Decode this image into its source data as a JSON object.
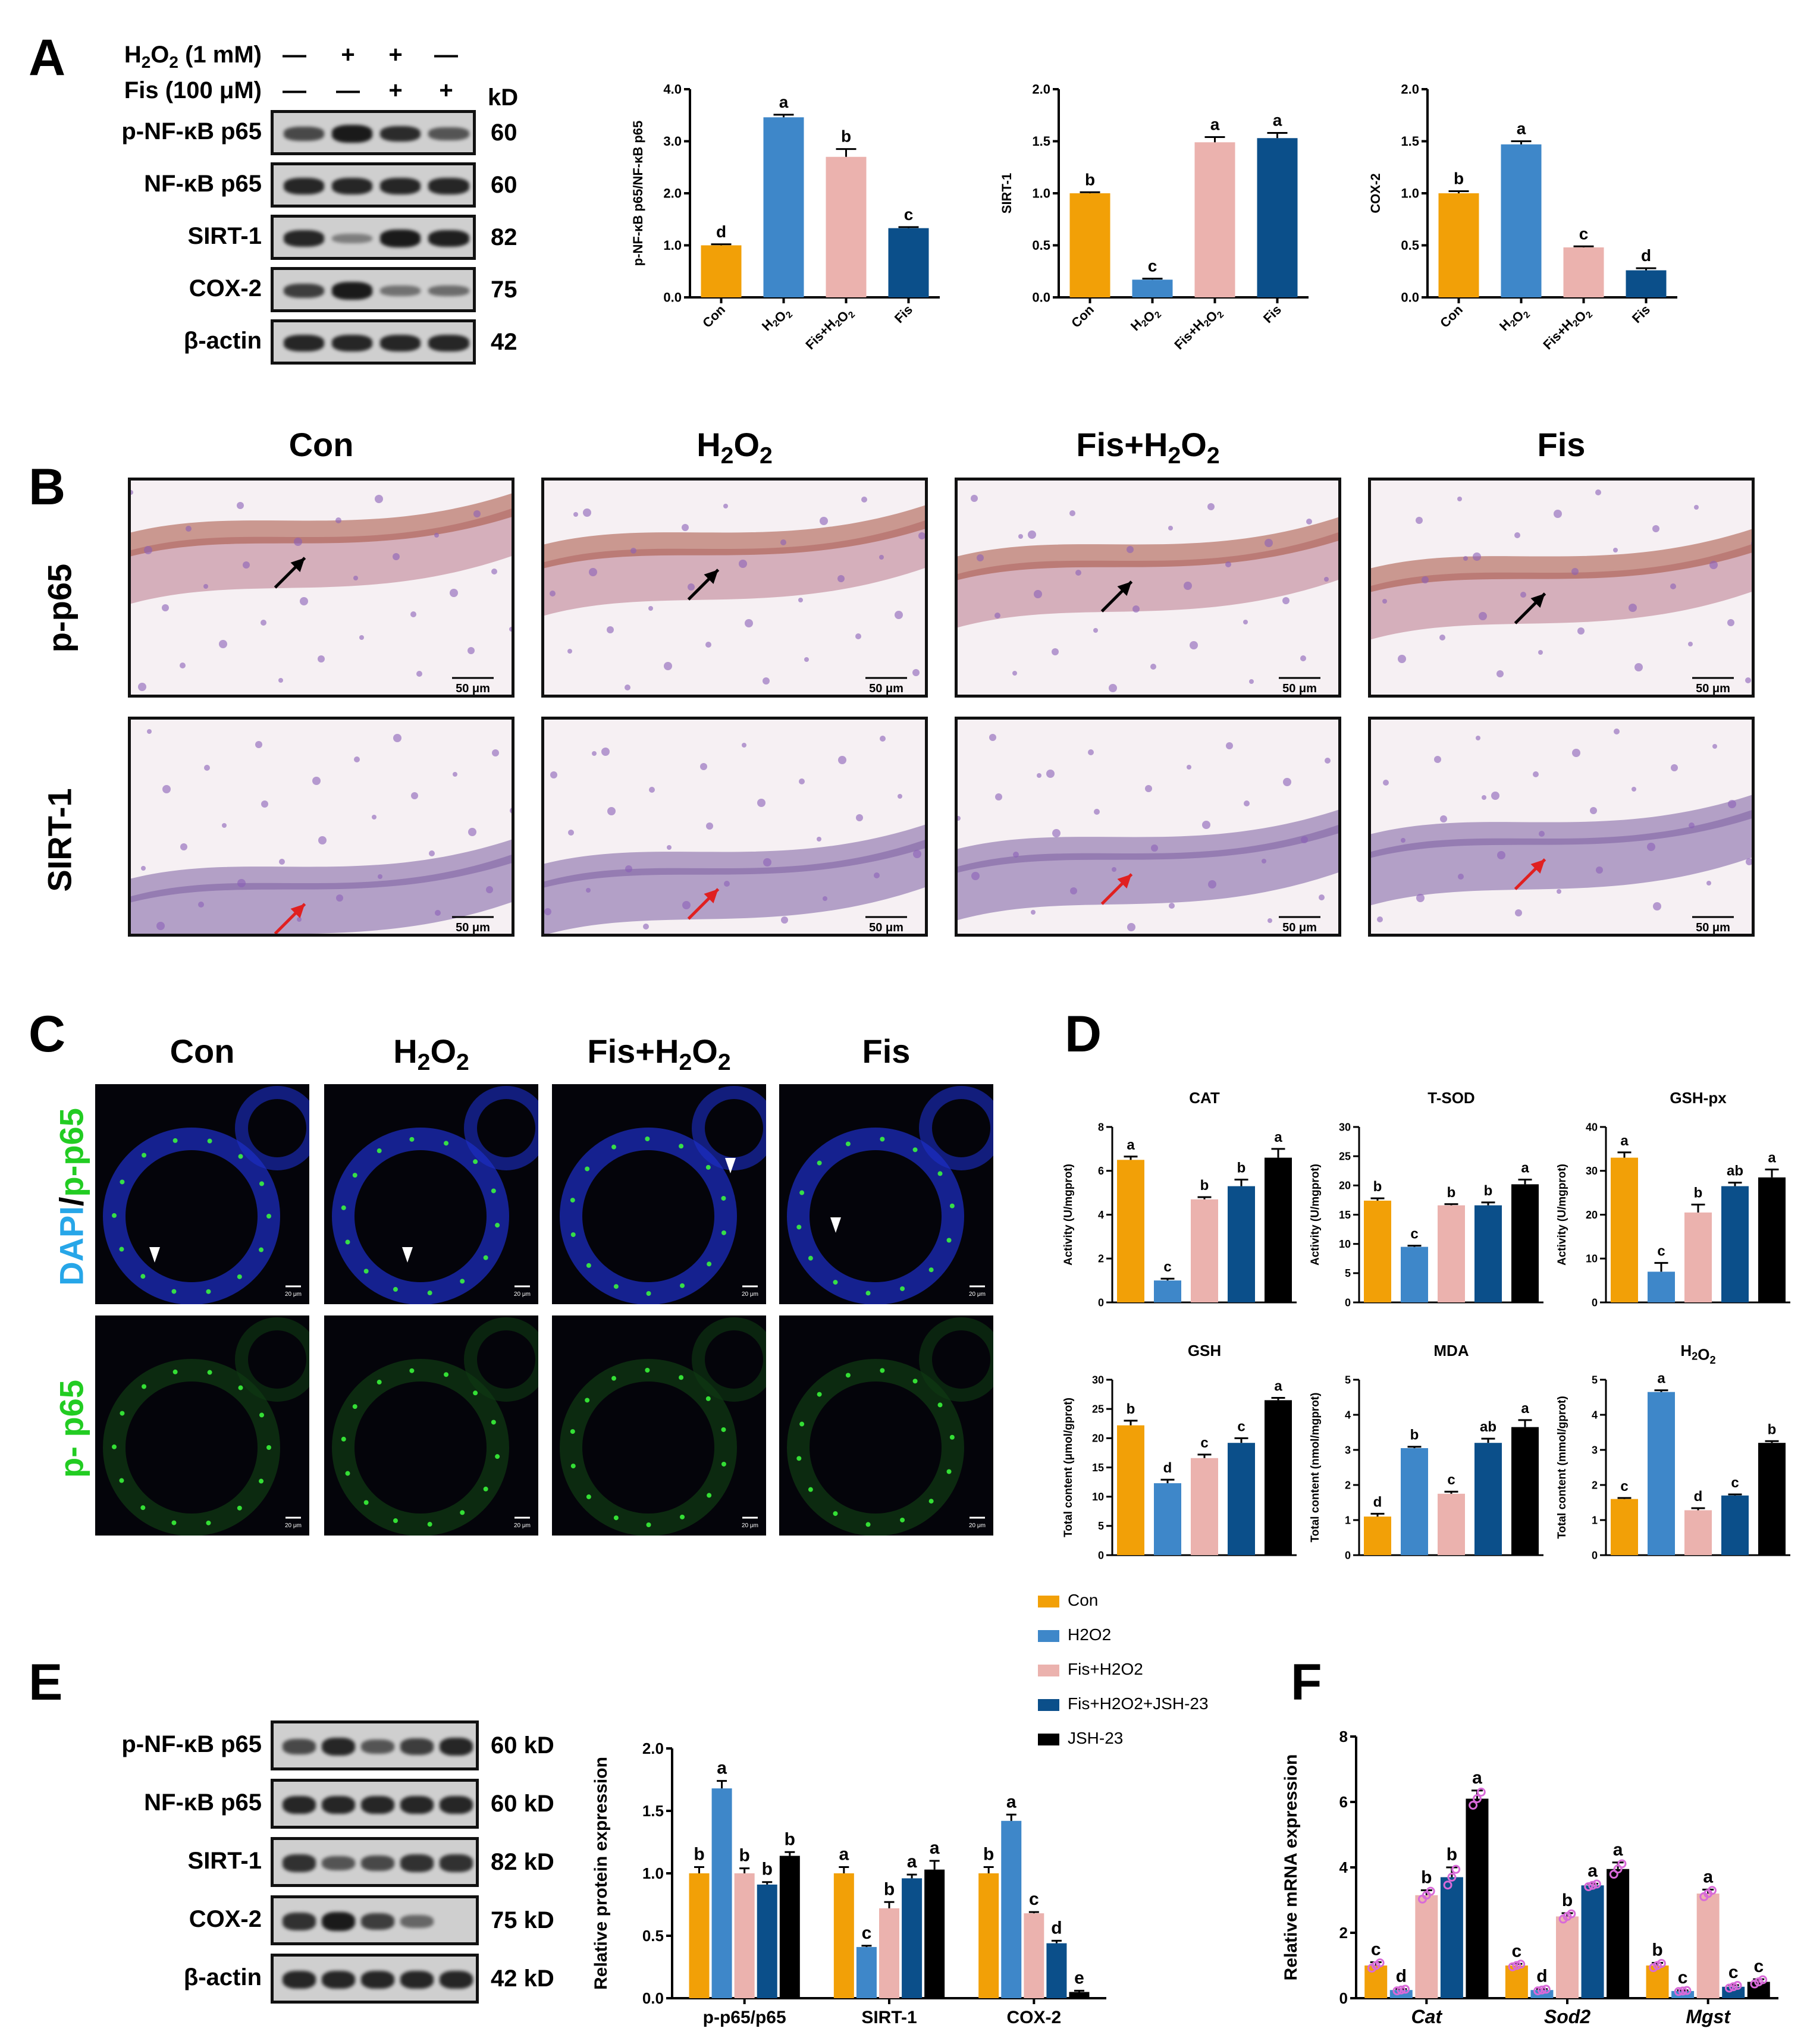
{
  "panel_letters": {
    "A": "A",
    "B": "B",
    "C": "C",
    "D": "D",
    "E": "E",
    "F": "F"
  },
  "colors": {
    "con": "#F2A007",
    "h2o2": "#3E87C9",
    "fis_h2o2": "#EBB2AE",
    "fis_jsh": "#0B4F8A",
    "jsh": "#000000"
  },
  "western_a": {
    "h2o2_label": "H2O2 (1 mM)",
    "fis_label": "Fis (100 μM)",
    "h2o2_signs": [
      "—",
      "+",
      "+",
      "—"
    ],
    "fis_signs": [
      "—",
      "—",
      "+",
      "+"
    ],
    "kd_header": "kD",
    "rows": [
      {
        "label": "p-NF-κB p65",
        "kd": "60"
      },
      {
        "label": "NF-κB p65",
        "kd": "60"
      },
      {
        "label": "SIRT-1",
        "kd": "82"
      },
      {
        "label": "COX-2",
        "kd": "75"
      },
      {
        "label": "β-actin",
        "kd": "42"
      }
    ]
  },
  "histology": {
    "columns": [
      "Con",
      "H2O2",
      "Fis+H2O2",
      "Fis"
    ],
    "rows": [
      "p-p65",
      "SIRT-1"
    ],
    "scale": "50 μm"
  },
  "fluorescence": {
    "columns": [
      "Con",
      "H2O2",
      "Fis+H2O2",
      "Fis"
    ],
    "row1_label_a": "DAPI",
    "row1_label_sep": "/",
    "row1_label_b": "p-p65",
    "row2_label": "p- p65",
    "scale": "20 μm"
  },
  "legend": [
    "Con",
    "H2O2",
    "Fis+H2O2",
    "Fis+H2O2+JSH-23",
    "JSH-23"
  ],
  "western_e": {
    "rows": [
      {
        "label": "p-NF-κB p65",
        "kd": "60 kD"
      },
      {
        "label": "NF-κB p65",
        "kd": "60 kD"
      },
      {
        "label": "SIRT-1",
        "kd": "82 kD"
      },
      {
        "label": "COX-2",
        "kd": "75 kD"
      },
      {
        "label": "β-actin",
        "kd": "42 kD"
      }
    ]
  },
  "chart_data": [
    {
      "id": "A1",
      "type": "bar",
      "categories": [
        "Con",
        "H2O2",
        "Fis+H2O2",
        "Fis"
      ],
      "values": [
        1.0,
        3.46,
        2.7,
        1.33
      ],
      "errors": [
        0.02,
        0.05,
        0.15,
        0.02
      ],
      "letters": [
        "d",
        "a",
        "b",
        "c"
      ],
      "ylabel": "p-NF-κB p65/NF-κB p65",
      "ylim": [
        0,
        4.0
      ],
      "yticks": [
        "0.0",
        "1.0",
        "2.0",
        "3.0",
        "4.0"
      ]
    },
    {
      "id": "A2",
      "type": "bar",
      "categories": [
        "Con",
        "H2O2",
        "Fis+H2O2",
        "Fis"
      ],
      "values": [
        1.0,
        0.17,
        1.49,
        1.53
      ],
      "errors": [
        0.01,
        0.01,
        0.05,
        0.05
      ],
      "letters": [
        "b",
        "c",
        "a",
        "a"
      ],
      "ylabel": "SIRT-1",
      "ylim": [
        0,
        2.0
      ],
      "yticks": [
        "0.0",
        "0.5",
        "1.0",
        "1.5",
        "2.0"
      ]
    },
    {
      "id": "A3",
      "type": "bar",
      "categories": [
        "Con",
        "H2O2",
        "Fis+H2O2",
        "Fis"
      ],
      "values": [
        1.0,
        1.47,
        0.48,
        0.26
      ],
      "errors": [
        0.02,
        0.03,
        0.01,
        0.02
      ],
      "letters": [
        "b",
        "a",
        "c",
        "d"
      ],
      "ylabel": "COX-2",
      "ylim": [
        0,
        2.0
      ],
      "yticks": [
        "0.0",
        "0.5",
        "1.0",
        "1.5",
        "2.0"
      ]
    },
    {
      "id": "D1",
      "type": "bar",
      "title": "CAT",
      "values": [
        6.5,
        1.0,
        4.7,
        5.3,
        6.6
      ],
      "errors": [
        0.15,
        0.08,
        0.1,
        0.3,
        0.4
      ],
      "letters": [
        "a",
        "c",
        "b",
        "b",
        "a"
      ],
      "ylabel": "Activity (U/mgprot)",
      "ylim": [
        0,
        8
      ],
      "yticks": [
        "0",
        "2",
        "4",
        "6",
        "8"
      ]
    },
    {
      "id": "D2",
      "type": "bar",
      "title": "T-SOD",
      "values": [
        17.4,
        9.5,
        16.6,
        16.6,
        20.2
      ],
      "errors": [
        0.4,
        0.2,
        0.2,
        0.5,
        0.8
      ],
      "letters": [
        "b",
        "c",
        "b",
        "b",
        "a"
      ],
      "ylabel": "Activity (U/mgprot)",
      "ylim": [
        0,
        30
      ],
      "yticks": [
        "0",
        "5",
        "10",
        "15",
        "20",
        "25",
        "30"
      ]
    },
    {
      "id": "D3",
      "type": "bar",
      "title": "GSH-px",
      "values": [
        33,
        7,
        20.5,
        26.5,
        28.5
      ],
      "errors": [
        1.2,
        2.0,
        1.8,
        0.8,
        1.8
      ],
      "letters": [
        "a",
        "c",
        "b",
        "ab",
        "a"
      ],
      "ylabel": "Activity (U/mgprot)",
      "ylim": [
        0,
        40
      ],
      "yticks": [
        "0",
        "10",
        "20",
        "30",
        "40"
      ]
    },
    {
      "id": "D4",
      "type": "bar",
      "title": "GSH",
      "values": [
        22.2,
        12.3,
        16.6,
        19.2,
        26.5
      ],
      "errors": [
        0.8,
        0.6,
        0.6,
        0.8,
        0.4
      ],
      "letters": [
        "b",
        "d",
        "c",
        "c",
        "a"
      ],
      "ylabel": "Total content (μmol/gprot)",
      "ylim": [
        0,
        30
      ],
      "yticks": [
        "0",
        "5",
        "10",
        "15",
        "20",
        "25",
        "30"
      ]
    },
    {
      "id": "D5",
      "type": "bar",
      "title": "MDA",
      "values": [
        1.1,
        3.05,
        1.75,
        3.2,
        3.65
      ],
      "errors": [
        0.08,
        0.04,
        0.06,
        0.12,
        0.2
      ],
      "letters": [
        "d",
        "b",
        "c",
        "ab",
        "a"
      ],
      "ylabel": "Total content (nmol/mgprot)",
      "ylim": [
        0,
        5
      ],
      "yticks": [
        "0",
        "1",
        "2",
        "3",
        "4",
        "5"
      ]
    },
    {
      "id": "D6",
      "type": "bar",
      "title": "H2O2",
      "values": [
        1.6,
        4.65,
        1.28,
        1.7,
        3.2
      ],
      "errors": [
        0.03,
        0.05,
        0.06,
        0.03,
        0.05
      ],
      "letters": [
        "c",
        "a",
        "d",
        "c",
        "b"
      ],
      "ylabel": "Total content (mmol/gprot)",
      "ylim": [
        0,
        5
      ],
      "yticks": [
        "0",
        "1",
        "2",
        "3",
        "4",
        "5"
      ]
    },
    {
      "id": "E",
      "type": "bar",
      "categories": [
        "p-p65/p65",
        "SIRT-1",
        "COX-2"
      ],
      "series": [
        {
          "values": [
            1.0,
            1.0,
            1.0
          ],
          "errors": [
            0.05,
            0.05,
            0.05
          ],
          "letters": [
            "b",
            "a",
            "b"
          ]
        },
        {
          "values": [
            1.68,
            0.41,
            1.42
          ],
          "errors": [
            0.06,
            0.01,
            0.05
          ],
          "letters": [
            "a",
            "c",
            "a"
          ]
        },
        {
          "values": [
            1.0,
            0.72,
            0.68
          ],
          "errors": [
            0.04,
            0.05,
            0.01
          ],
          "letters": [
            "b",
            "b",
            "c"
          ]
        },
        {
          "values": [
            0.91,
            0.96,
            0.44
          ],
          "errors": [
            0.02,
            0.03,
            0.02
          ],
          "letters": [
            "b",
            "a",
            "d"
          ]
        },
        {
          "values": [
            1.14,
            1.03,
            0.05
          ],
          "errors": [
            0.03,
            0.07,
            0.01
          ],
          "letters": [
            "b",
            "a",
            "e"
          ]
        }
      ],
      "ylabel": "Relative protein expression",
      "ylim": [
        0,
        2.0
      ],
      "yticks": [
        "0.0",
        "0.5",
        "1.0",
        "1.5",
        "2.0"
      ]
    },
    {
      "id": "F",
      "type": "bar",
      "categories": [
        "Cat",
        "Sod2",
        "Mgst"
      ],
      "series": [
        {
          "values": [
            1.0,
            1.0,
            1.0
          ],
          "errors": [
            0.1,
            0.05,
            0.08
          ],
          "letters": [
            "c",
            "c",
            "b"
          ]
        },
        {
          "values": [
            0.25,
            0.25,
            0.22
          ],
          "errors": [
            0.03,
            0.03,
            0.02
          ],
          "letters": [
            "d",
            "d",
            "c"
          ]
        },
        {
          "values": [
            3.15,
            2.5,
            3.2
          ],
          "errors": [
            0.15,
            0.1,
            0.12
          ],
          "letters": [
            "b",
            "b",
            "a"
          ]
        },
        {
          "values": [
            3.7,
            3.45,
            0.35
          ],
          "errors": [
            0.3,
            0.05,
            0.05
          ],
          "letters": [
            "b",
            "a",
            "c"
          ]
        },
        {
          "values": [
            6.1,
            3.95,
            0.5
          ],
          "errors": [
            0.25,
            0.2,
            0.08
          ],
          "letters": [
            "a",
            "a",
            "c"
          ]
        }
      ],
      "ylabel": "Relative mRNA expression",
      "ylim": [
        0,
        8
      ],
      "yticks": [
        "0",
        "2",
        "4",
        "6",
        "8"
      ]
    }
  ]
}
